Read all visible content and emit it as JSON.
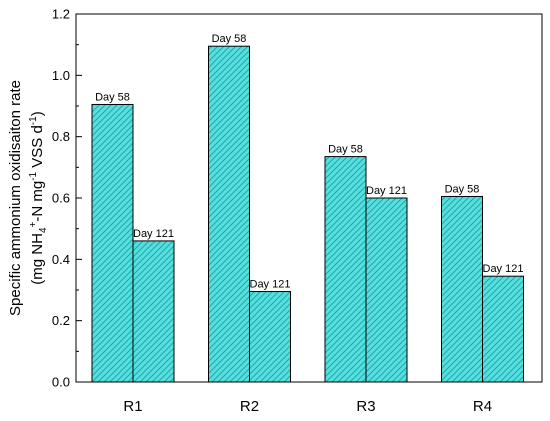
{
  "chart_data": {
    "type": "bar",
    "categories": [
      "R1",
      "R2",
      "R3",
      "R4"
    ],
    "series": [
      {
        "values": [
          0.905,
          1.095,
          0.735,
          0.605
        ],
        "labels": [
          "Day 58",
          "Day 58",
          "Day 58",
          "Day 58"
        ]
      },
      {
        "values": [
          0.46,
          0.295,
          0.6,
          0.345
        ],
        "labels": [
          "Day 121",
          "Day 121",
          "Day 121",
          "Day 121"
        ]
      }
    ],
    "ylim": [
      0,
      1.2
    ],
    "yticks": [
      "0.0",
      "0.2",
      "0.4",
      "0.6",
      "0.8",
      "1.0",
      "1.2"
    ],
    "ylabel": {
      "line1": "Specific ammonium oxidisaiton rate",
      "line2": {
        "part1": "(mg NH",
        "sub1": "4",
        "sup1": "+",
        "part2": "-N mg",
        "sup2": "-1",
        "part3": " VSS d",
        "sup3": "-1",
        "part4": ")"
      }
    },
    "xlabel": "",
    "title": "",
    "bar_color": "#55e0e0",
    "hatch_color": "#2aa3a3",
    "grid": false
  }
}
